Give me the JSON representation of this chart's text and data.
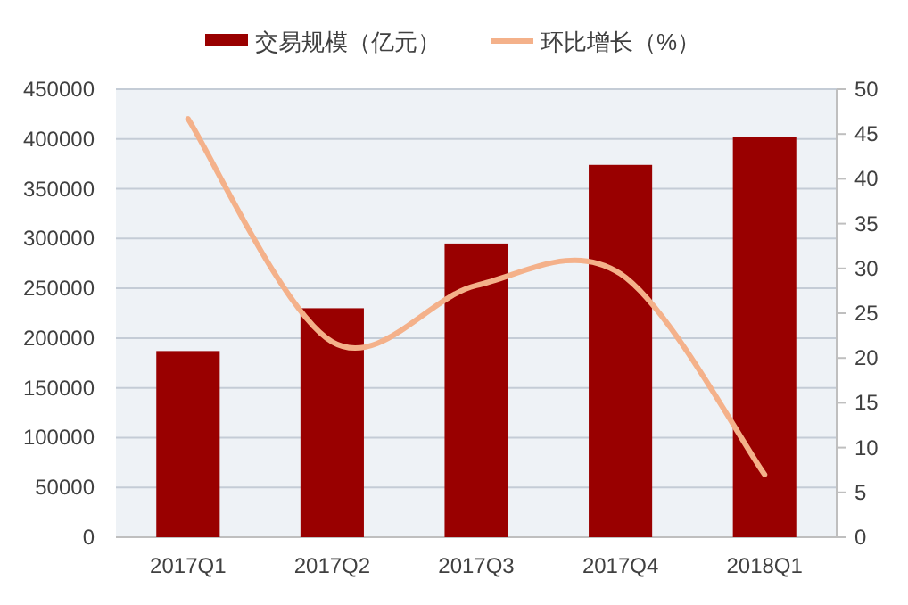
{
  "chart_data": {
    "type": "bar",
    "categories": [
      "2017Q1",
      "2017Q2",
      "2017Q3",
      "2017Q4",
      "2018Q1"
    ],
    "series": [
      {
        "name": "交易规模（亿元）",
        "color": "#990000",
        "values": [
          187000,
          230000,
          295000,
          374000,
          402000
        ]
      },
      {
        "name": "环比增长（%）",
        "type": "line",
        "axis": "y2",
        "color": "#f4b18a",
        "values": [
          46.7,
          21.8,
          28.1,
          29.4,
          7.0
        ]
      }
    ],
    "ylim": [
      0,
      450000
    ],
    "yticks": [
      0,
      50000,
      100000,
      150000,
      200000,
      250000,
      300000,
      350000,
      400000,
      450000
    ],
    "y2lim": [
      0,
      50
    ],
    "y2ticks": [
      0,
      5,
      10,
      15,
      20,
      25,
      30,
      35,
      40,
      45,
      50
    ],
    "grid": "y",
    "legend": "top",
    "marker": "none"
  }
}
